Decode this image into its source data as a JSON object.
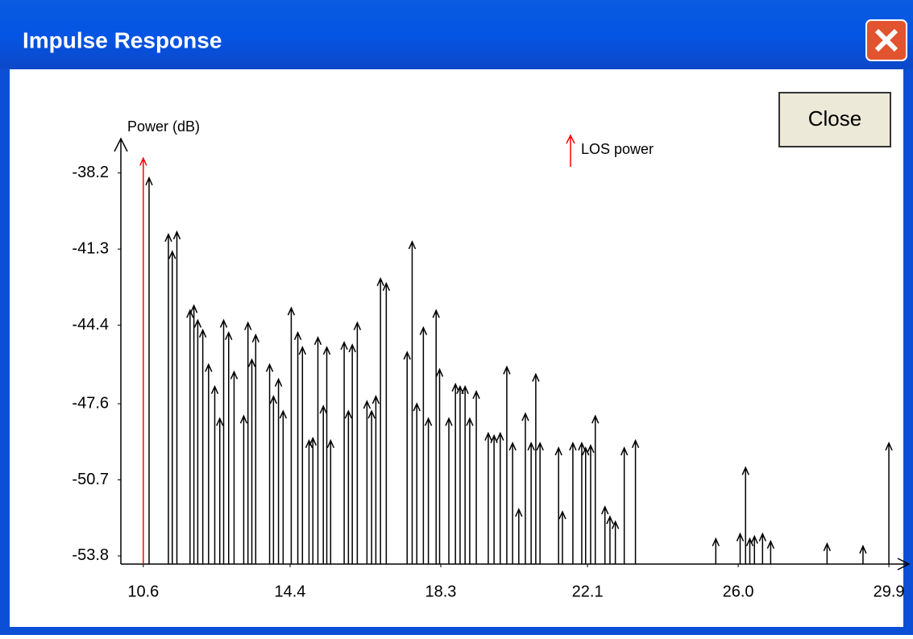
{
  "window": {
    "title": "Impulse Response",
    "close_button": "Close"
  },
  "chart_data": {
    "type": "impulse",
    "y_label": "Power (dB)",
    "xlim": [
      10.02,
      30.42
    ],
    "ylim": [
      -54.13,
      -36.8
    ],
    "xticks": [
      10.6,
      14.4,
      18.3,
      22.1,
      {
        "value": 26.0,
        "label": "26.0"
      },
      29.9
    ],
    "yticks": [
      -38.2,
      -41.3,
      -44.4,
      -47.6,
      -50.7,
      -53.8
    ],
    "series": [
      {
        "name": "LOS power",
        "color": "#ff0000",
        "x": [
          10.6
        ],
        "values": [
          -37.6
        ]
      },
      {
        "color": "#000000",
        "x": [
          10.75,
          11.25,
          11.35,
          11.47,
          11.81,
          11.91,
          12.01,
          12.14,
          12.29,
          12.45,
          12.58,
          12.68,
          12.81,
          12.95,
          13.2,
          13.31,
          13.41,
          13.51,
          13.87,
          13.97,
          14.1,
          14.22,
          14.43,
          14.6,
          14.72,
          14.89,
          14.99,
          15.12,
          15.26,
          15.35,
          15.45,
          15.8,
          15.91,
          16.01,
          16.14,
          16.39,
          16.51,
          16.62,
          16.74,
          16.89,
          17.43,
          17.56,
          17.68,
          17.85,
          17.98,
          18.18,
          18.27,
          18.51,
          18.68,
          18.8,
          18.93,
          19.05,
          19.22,
          19.53,
          19.68,
          19.84,
          20.01,
          20.16,
          20.32,
          20.49,
          20.64,
          20.76,
          20.87,
          21.35,
          21.45,
          21.72,
          21.95,
          22.05,
          22.18,
          22.3,
          22.55,
          22.68,
          22.82,
          23.05,
          23.34,
          25.42,
          26.05,
          26.19,
          26.3,
          26.42,
          26.63,
          26.84,
          28.3,
          29.23,
          29.9
        ],
        "values": [
          -38.4,
          -40.7,
          -41.4,
          -40.6,
          -43.8,
          -43.6,
          -44.2,
          -44.6,
          -46.0,
          -46.9,
          -48.2,
          -44.2,
          -44.7,
          -46.3,
          -48.1,
          -44.3,
          -45.8,
          -44.8,
          -46.0,
          -47.3,
          -46.6,
          -47.9,
          -43.7,
          -44.7,
          -45.3,
          -49.1,
          -49.0,
          -44.9,
          -47.7,
          -45.3,
          -49.1,
          -45.1,
          -47.9,
          -45.2,
          -44.3,
          -47.5,
          -47.9,
          -47.3,
          -42.5,
          -42.7,
          -45.5,
          -41.0,
          -47.6,
          -44.5,
          -48.2,
          -43.8,
          -46.2,
          -48.2,
          -46.8,
          -46.9,
          -46.9,
          -48.2,
          -47.1,
          -48.8,
          -48.9,
          -48.8,
          -46.1,
          -49.2,
          -51.9,
          -48.0,
          -49.2,
          -46.4,
          -49.2,
          -49.4,
          -52.0,
          -49.2,
          -49.2,
          -49.4,
          -49.3,
          -48.1,
          -51.8,
          -52.2,
          -52.4,
          -49.4,
          -49.1,
          -53.1,
          -52.9,
          -50.2,
          -53.1,
          -53.0,
          -52.9,
          -53.2,
          -53.3,
          -53.4,
          -49.2
        ]
      }
    ]
  }
}
